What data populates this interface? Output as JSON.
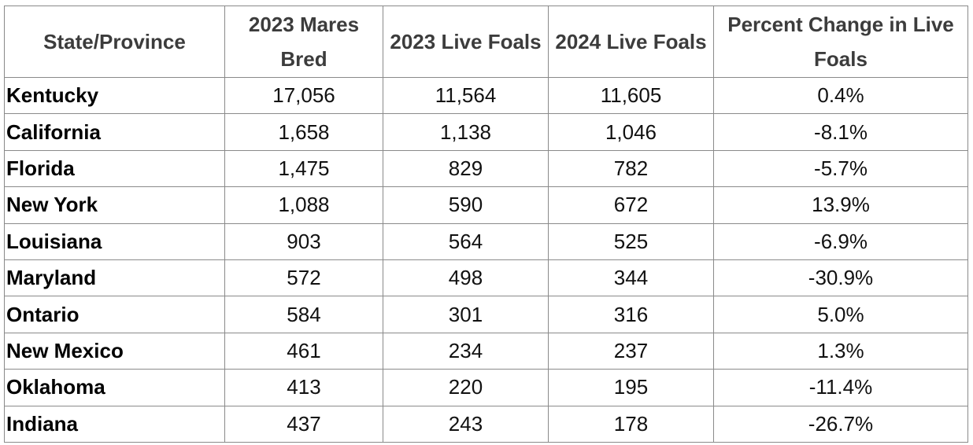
{
  "table": {
    "headers": [
      "State/Province",
      "2023 Mares Bred",
      "2023 Live Foals",
      "2024 Live Foals",
      "Percent Change in Live Foals"
    ],
    "rows": [
      [
        "Kentucky",
        "17,056",
        "11,564",
        "11,605",
        "0.4%"
      ],
      [
        "California",
        "1,658",
        "1,138",
        "1,046",
        "-8.1%"
      ],
      [
        "Florida",
        "1,475",
        "829",
        "782",
        "-5.7%"
      ],
      [
        "New York",
        "1,088",
        "590",
        "672",
        "13.9%"
      ],
      [
        "Louisiana",
        "903",
        "564",
        "525",
        "-6.9%"
      ],
      [
        "Maryland",
        "572",
        "498",
        "344",
        "-30.9%"
      ],
      [
        "Ontario",
        "584",
        "301",
        "316",
        "5.0%"
      ],
      [
        "New Mexico",
        "461",
        "234",
        "237",
        "1.3%"
      ],
      [
        "Oklahoma",
        "413",
        "220",
        "195",
        "-11.4%"
      ],
      [
        "Indiana",
        "437",
        "243",
        "178",
        "-26.7%"
      ]
    ]
  }
}
